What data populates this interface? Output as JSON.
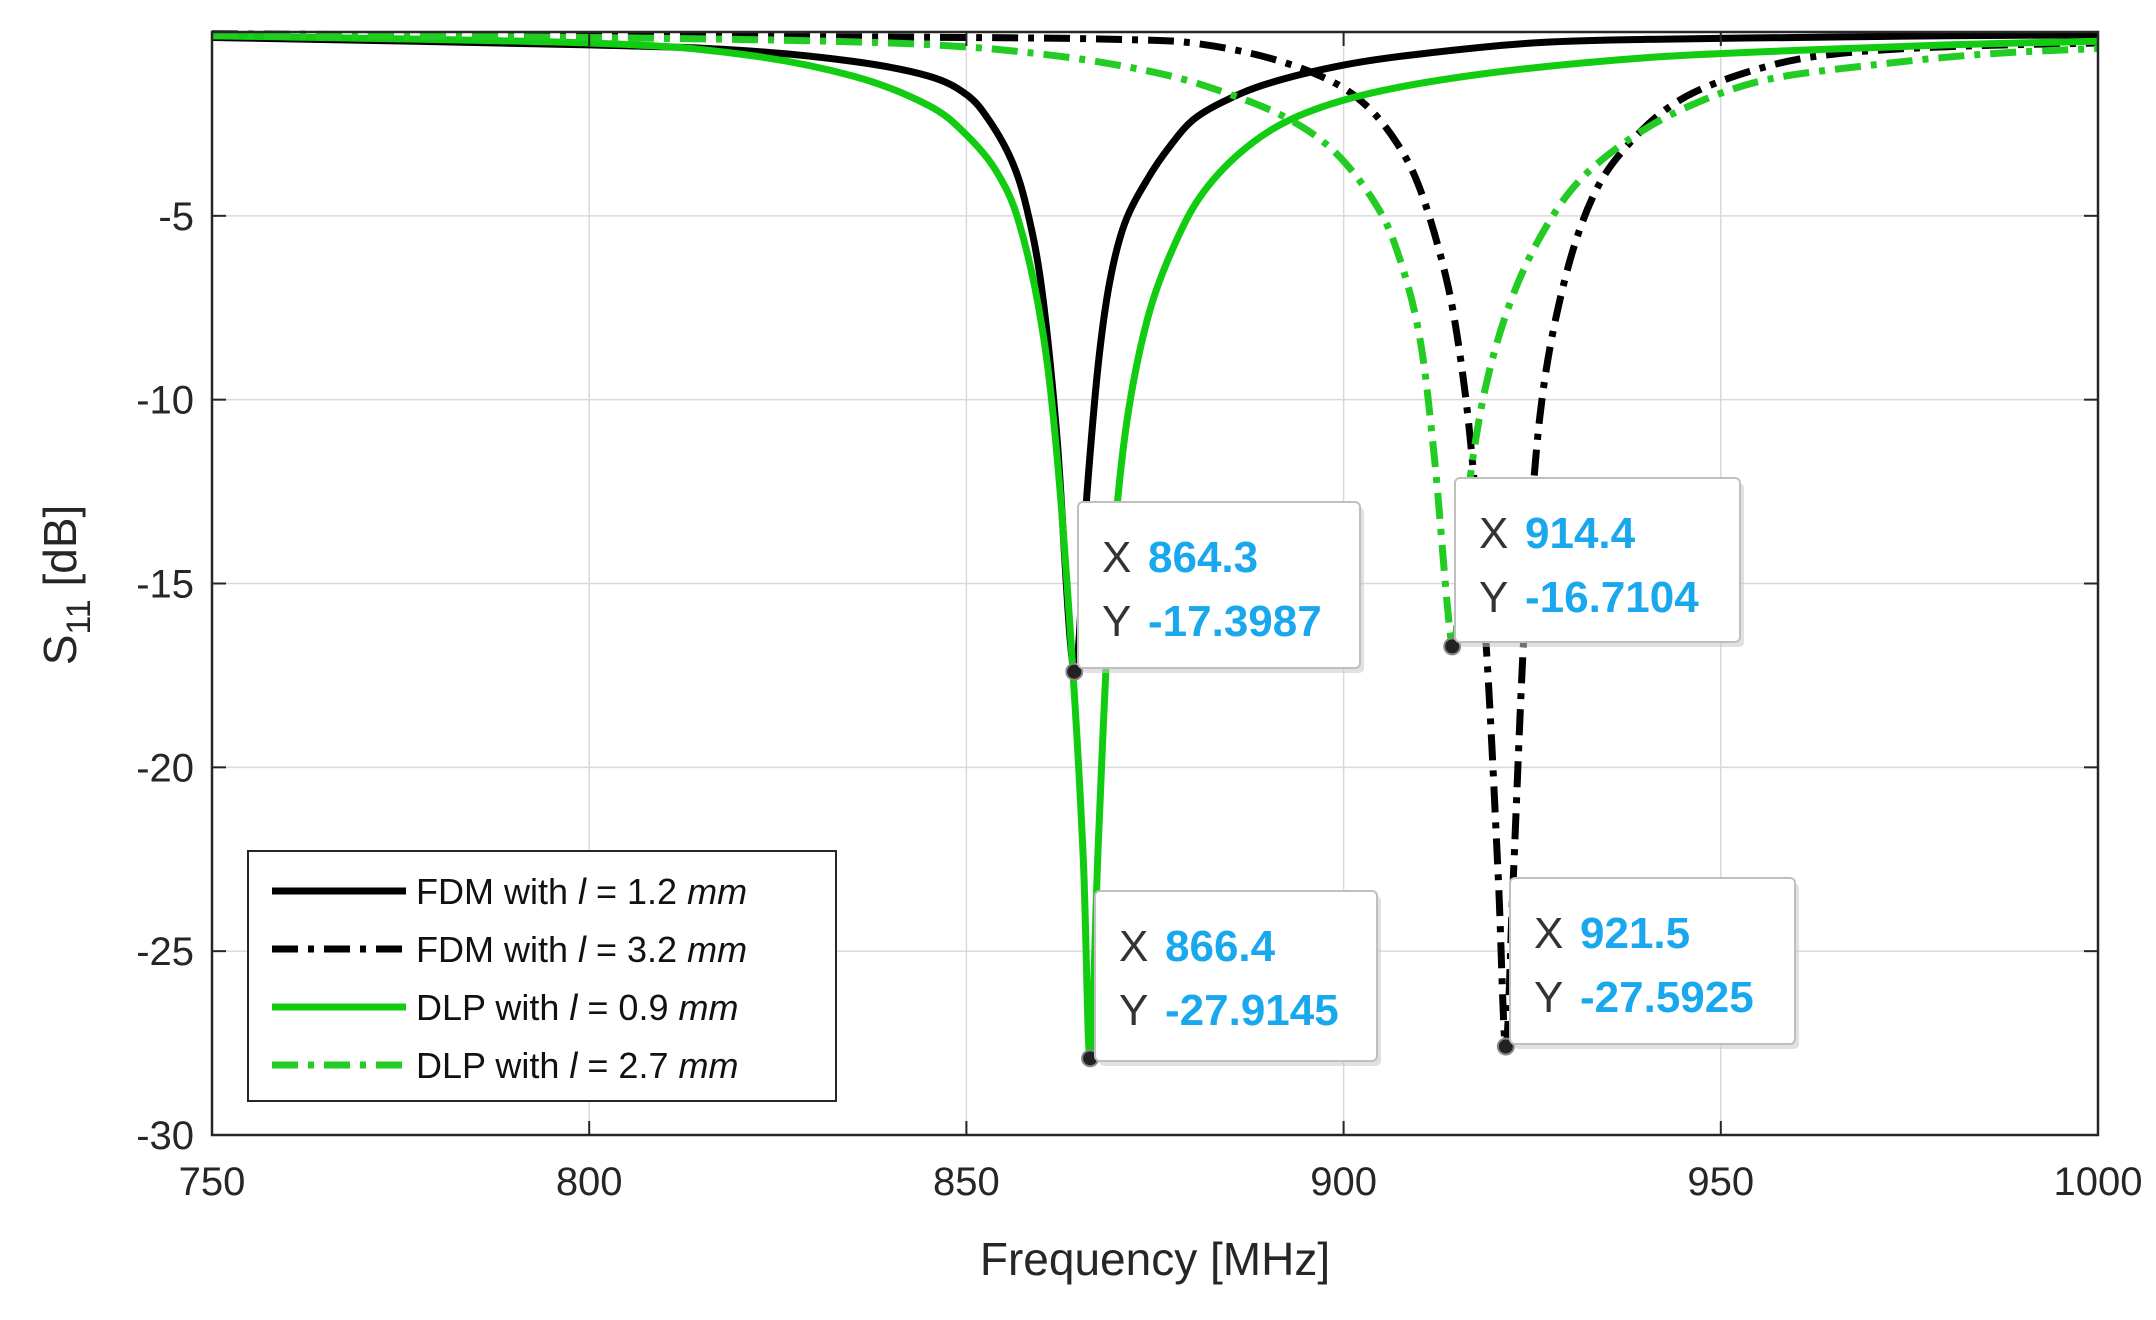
{
  "chart_data": {
    "type": "line",
    "xlabel": "Frequency [MHz]",
    "ylabel_main": "S",
    "ylabel_sub": "11",
    "ylabel_unit": " [dB]",
    "xlim": [
      750,
      1000
    ],
    "ylim": [
      -30,
      0
    ],
    "xticks": [
      750,
      800,
      850,
      900,
      950,
      1000
    ],
    "yticks": [
      -5,
      -10,
      -15,
      -20,
      -25,
      -30
    ],
    "grid": true,
    "legend_position": "bottom-left",
    "series": [
      {
        "name": "FDM with l = 1.2 mm",
        "legend_prefix": "FDM with ",
        "legend_var": "l",
        "legend_eq": " = 1.2 ",
        "legend_unit": "mm",
        "color": "#000000",
        "style": "solid",
        "x": [
          750,
          800,
          820,
          835,
          845,
          850,
          853,
          856,
          858,
          860,
          862,
          864.3,
          866,
          867.5,
          869,
          871,
          874,
          877,
          880,
          884,
          890,
          900,
          910,
          925,
          940,
          960,
          980,
          1000
        ],
        "y": [
          -0.15,
          -0.35,
          -0.5,
          -0.8,
          -1.2,
          -1.7,
          -2.4,
          -3.5,
          -4.8,
          -7.0,
          -11.0,
          -17.4,
          -12.5,
          -9.0,
          -6.8,
          -5.2,
          -4.0,
          -3.1,
          -2.4,
          -1.9,
          -1.4,
          -0.9,
          -0.6,
          -0.3,
          -0.2,
          -0.15,
          -0.1,
          -0.08
        ]
      },
      {
        "name": "FDM with l = 3.2 mm",
        "legend_prefix": "FDM with ",
        "legend_var": "l",
        "legend_eq": " = 3.2 ",
        "legend_unit": "mm",
        "color": "#000000",
        "style": "dashdot",
        "x": [
          750,
          800,
          850,
          870,
          880,
          890,
          898,
          903,
          907,
          910,
          913,
          915,
          917,
          919,
          920.5,
          921.5,
          922.5,
          924,
          926,
          929,
          933,
          938,
          945,
          955,
          965,
          980,
          1000
        ],
        "y": [
          -0.05,
          -0.1,
          -0.15,
          -0.2,
          -0.3,
          -0.7,
          -1.3,
          -2.0,
          -3.0,
          -4.2,
          -6.2,
          -8.2,
          -11.5,
          -17.0,
          -23.0,
          -27.59,
          -23.0,
          -16.0,
          -10.5,
          -7.0,
          -4.5,
          -3.0,
          -1.8,
          -1.0,
          -0.6,
          -0.4,
          -0.3
        ]
      },
      {
        "name": "DLP with l = 0.9 mm",
        "legend_prefix": "DLP with ",
        "legend_var": "l",
        "legend_eq": " = 0.9 ",
        "legend_unit": "mm",
        "color": "#11cc11",
        "style": "solid",
        "x": [
          750,
          800,
          820,
          835,
          845,
          850,
          854,
          857,
          860,
          862,
          864,
          865.5,
          866.4,
          867.5,
          869,
          871,
          874,
          878,
          882,
          888,
          895,
          905,
          920,
          940,
          960,
          980,
          1000
        ],
        "y": [
          -0.1,
          -0.3,
          -0.6,
          -1.2,
          -2.0,
          -2.8,
          -3.8,
          -5.2,
          -8.0,
          -11.5,
          -17.0,
          -22.5,
          -27.9,
          -22.0,
          -15.5,
          -11.0,
          -7.8,
          -5.6,
          -4.2,
          -3.0,
          -2.2,
          -1.6,
          -1.1,
          -0.7,
          -0.5,
          -0.35,
          -0.25
        ]
      },
      {
        "name": "DLP with l = 2.7 mm",
        "legend_prefix": "DLP with ",
        "legend_var": "l",
        "legend_eq": " = 2.7 ",
        "legend_unit": "mm",
        "color": "#22cc22",
        "style": "dashdot",
        "x": [
          750,
          800,
          840,
          860,
          875,
          885,
          893,
          899,
          904,
          907,
          910,
          912,
          914.4,
          915.5,
          917,
          919,
          922,
          926,
          931,
          938,
          946,
          956,
          970,
          985,
          1000
        ],
        "y": [
          -0.1,
          -0.15,
          -0.3,
          -0.6,
          -1.1,
          -1.7,
          -2.4,
          -3.3,
          -4.6,
          -5.9,
          -8.2,
          -11.5,
          -16.71,
          -14.5,
          -11.8,
          -9.5,
          -7.4,
          -5.6,
          -4.1,
          -2.9,
          -2.0,
          -1.3,
          -0.9,
          -0.6,
          -0.45
        ]
      }
    ],
    "datatips": [
      {
        "x_label": "X",
        "y_label": "Y",
        "x": "864.3",
        "y": "-17.3987",
        "fx": 864.3,
        "fy": -17.3987
      },
      {
        "x_label": "X",
        "y_label": "Y",
        "x": "914.4",
        "y": "-16.7104",
        "fx": 914.4,
        "fy": -16.7104
      },
      {
        "x_label": "X",
        "y_label": "Y",
        "x": "866.4",
        "y": "-27.9145",
        "fx": 866.4,
        "fy": -27.9145
      },
      {
        "x_label": "X",
        "y_label": "Y",
        "x": "921.5",
        "y": "-27.5925",
        "fx": 921.5,
        "fy": -27.5925
      }
    ],
    "datatip_value_color": "#19a8ee"
  }
}
